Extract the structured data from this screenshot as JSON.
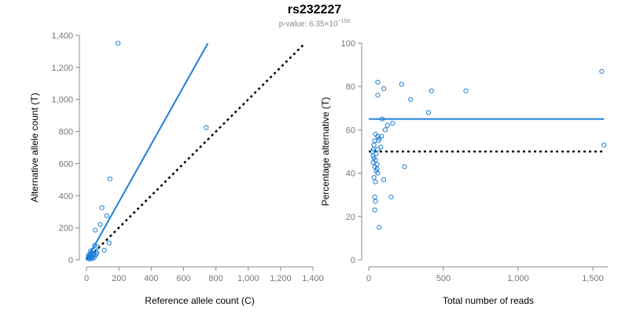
{
  "header": {
    "title": "rs232227",
    "pvalue_prefix": "p-value: 6.35×10",
    "pvalue_exponent": "−150"
  },
  "chart_data": [
    {
      "type": "scatter",
      "xlabel": "Reference allele count (C)",
      "ylabel": "Alternative allele count (T)",
      "xlim": [
        0,
        1400
      ],
      "ylim": [
        0,
        1400
      ],
      "x_ticks": [
        0,
        200,
        400,
        600,
        800,
        1000,
        1200,
        1400
      ],
      "x_tick_labels": [
        "0",
        "200",
        "400",
        "600",
        "800",
        "1,000",
        "1,200",
        "1,400"
      ],
      "y_ticks": [
        0,
        200,
        400,
        600,
        800,
        1000,
        1200,
        1400
      ],
      "y_tick_labels": [
        "0",
        "200",
        "400",
        "600",
        "800",
        "1,000",
        "1,200",
        "1,400"
      ],
      "grid": false,
      "points": [
        [
          195,
          1350
        ],
        [
          740,
          825
        ],
        [
          145,
          505
        ],
        [
          95,
          325
        ],
        [
          125,
          275
        ],
        [
          85,
          220
        ],
        [
          55,
          185
        ],
        [
          140,
          105
        ],
        [
          110,
          60
        ],
        [
          70,
          80
        ],
        [
          50,
          90
        ],
        [
          40,
          60
        ],
        [
          30,
          45
        ],
        [
          25,
          30
        ],
        [
          20,
          20
        ],
        [
          15,
          15
        ],
        [
          35,
          20
        ],
        [
          45,
          30
        ],
        [
          60,
          50
        ],
        [
          25,
          55
        ],
        [
          30,
          10
        ],
        [
          20,
          5
        ],
        [
          10,
          10
        ],
        [
          40,
          40
        ],
        [
          55,
          30
        ],
        [
          65,
          40
        ],
        [
          18,
          25
        ],
        [
          28,
          35
        ],
        [
          12,
          30
        ],
        [
          22,
          12
        ],
        [
          38,
          8
        ],
        [
          48,
          15
        ]
      ],
      "lines": [
        {
          "x": [
            0,
            750
          ],
          "y": [
            0,
            1350
          ],
          "style": "solid",
          "color": "#1e7fd6"
        },
        {
          "x": [
            0,
            1350
          ],
          "y": [
            0,
            1350
          ],
          "style": "dotted",
          "color": "#000000"
        }
      ],
      "point_color": "#1e7fd6"
    },
    {
      "type": "scatter",
      "xlabel": "Total number of reads",
      "ylabel": "Percentage alternative (T)",
      "xlim": [
        0,
        1600
      ],
      "ylim": [
        0,
        100
      ],
      "x_ticks": [
        0,
        500,
        1000,
        1500
      ],
      "x_tick_labels": [
        "0",
        "500",
        "1,000",
        "1,500"
      ],
      "y_ticks": [
        0,
        20,
        40,
        60,
        80,
        100
      ],
      "y_tick_labels": [
        "0",
        "20",
        "40",
        "60",
        "80",
        "100"
      ],
      "grid": false,
      "points": [
        [
          1560,
          87
        ],
        [
          1575,
          53
        ],
        [
          650,
          78
        ],
        [
          420,
          78
        ],
        [
          400,
          68
        ],
        [
          280,
          74
        ],
        [
          220,
          81
        ],
        [
          100,
          79
        ],
        [
          60,
          82
        ],
        [
          60,
          76
        ],
        [
          160,
          63
        ],
        [
          125,
          62
        ],
        [
          110,
          60
        ],
        [
          90,
          65
        ],
        [
          85,
          57
        ],
        [
          70,
          56
        ],
        [
          60,
          57
        ],
        [
          45,
          58
        ],
        [
          40,
          55
        ],
        [
          35,
          53
        ],
        [
          30,
          51
        ],
        [
          25,
          50
        ],
        [
          28,
          48
        ],
        [
          35,
          47
        ],
        [
          45,
          46
        ],
        [
          55,
          44
        ],
        [
          40,
          43
        ],
        [
          50,
          41
        ],
        [
          60,
          40
        ],
        [
          35,
          38
        ],
        [
          45,
          36
        ],
        [
          40,
          29
        ],
        [
          45,
          27
        ],
        [
          150,
          29
        ],
        [
          240,
          43
        ],
        [
          40,
          23
        ],
        [
          70,
          15
        ],
        [
          50,
          49
        ],
        [
          60,
          51
        ],
        [
          30,
          45
        ],
        [
          55,
          42
        ],
        [
          100,
          37
        ],
        [
          65,
          55
        ],
        [
          80,
          52
        ]
      ],
      "lines": [
        {
          "x": [
            0,
            1575
          ],
          "y": [
            65,
            65
          ],
          "style": "solid",
          "color": "#1e7fd6"
        },
        {
          "x": [
            0,
            1575
          ],
          "y": [
            50,
            50
          ],
          "style": "dotted",
          "color": "#000000"
        }
      ],
      "point_color": "#1e7fd6"
    }
  ]
}
